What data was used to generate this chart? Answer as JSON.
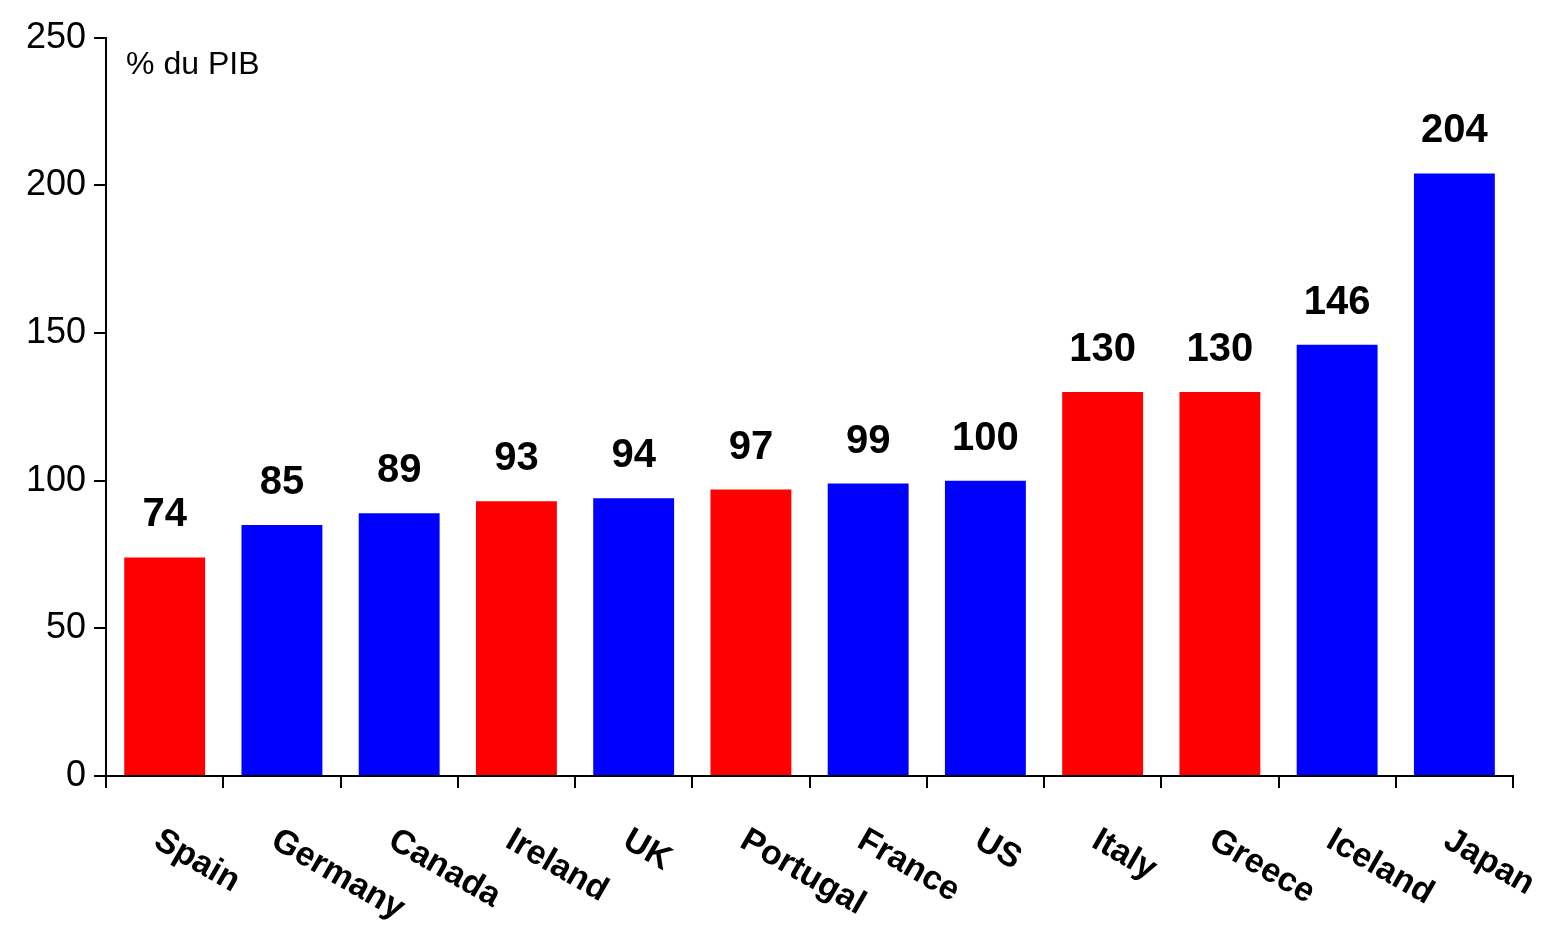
{
  "chart_data": {
    "type": "bar",
    "ylabel": "% du PIB",
    "categories": [
      "Spain",
      "Germany",
      "Canada",
      "Ireland",
      "UK",
      "Portugal",
      "France",
      "US",
      "Italy",
      "Greece",
      "Iceland",
      "Japan"
    ],
    "values": [
      74,
      85,
      89,
      93,
      94,
      97,
      99,
      100,
      130,
      130,
      146,
      204
    ],
    "colors": [
      "#ff0000",
      "#0000ff",
      "#0000ff",
      "#ff0000",
      "#0000ff",
      "#ff0000",
      "#0000ff",
      "#0000ff",
      "#ff0000",
      "#ff0000",
      "#0000ff",
      "#0000ff"
    ],
    "ylim": [
      0,
      250
    ],
    "yticks": [
      0,
      50,
      100,
      150,
      200,
      250
    ],
    "data_labels": true,
    "grid": false,
    "legend": false
  }
}
